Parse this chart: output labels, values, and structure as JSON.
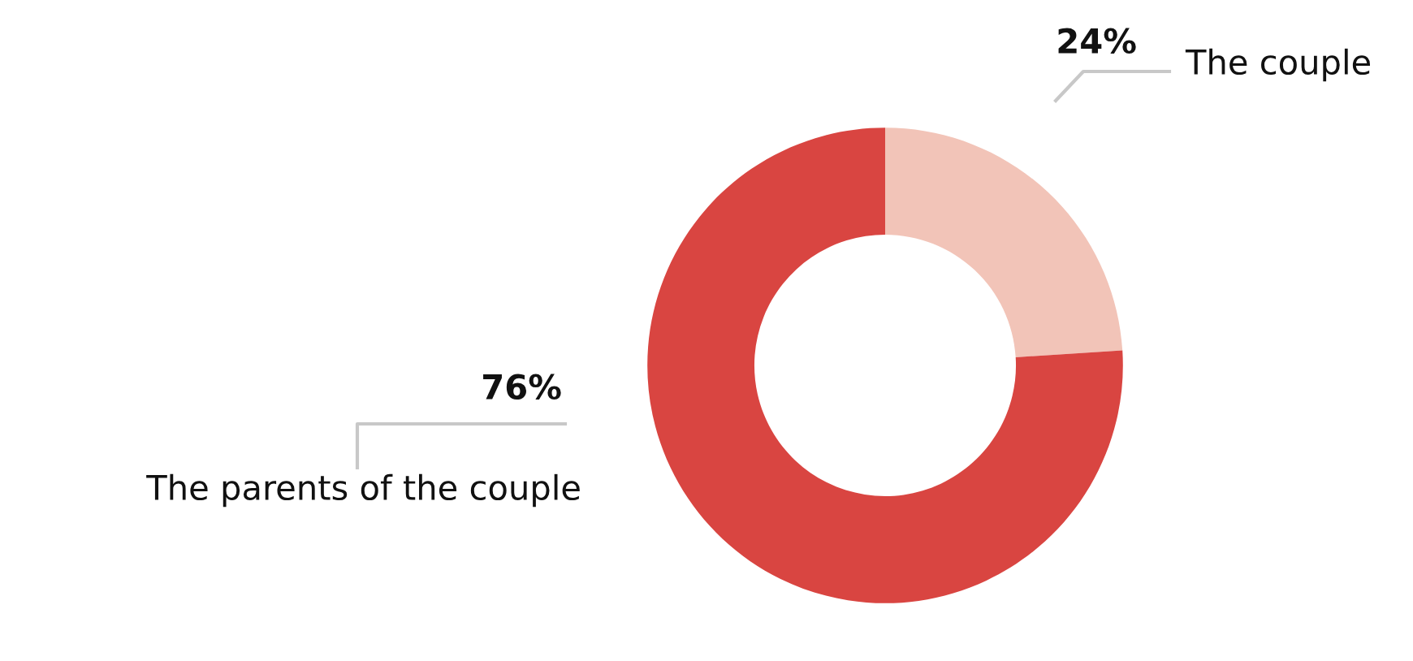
{
  "chart_data": {
    "type": "donut",
    "categories": [
      "The couple",
      "The parents of the couple"
    ],
    "values": [
      24,
      76
    ],
    "colors": [
      "#f2c4b8",
      "#d94541"
    ],
    "value_labels": [
      "24%",
      "76%"
    ],
    "legend": false
  }
}
